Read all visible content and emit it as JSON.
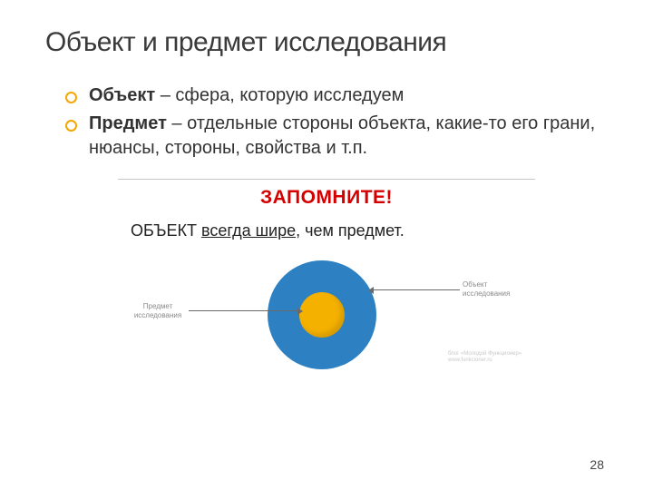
{
  "title": "Объект и предмет исследования",
  "bullets": [
    {
      "bold": "Объект",
      "rest": " – сфера, которую исследуем"
    },
    {
      "bold": "Предмет",
      "rest": " – отдельные стороны объекта, какие-то его грани, нюансы, стороны, свойства и т.п."
    }
  ],
  "info": {
    "header": "ЗАПОМНИТЕ!",
    "statement_pre": "ОБЪЕКТ ",
    "statement_underline": "всегда шире",
    "statement_post": ", чем предмет."
  },
  "diagram": {
    "outer_color": "#2d81c2",
    "inner_color": "#f5b100",
    "label_left_line1": "Предмет",
    "label_left_line2": "исследования",
    "label_right_line1": "Объект",
    "label_right_line2": "исследования"
  },
  "footnote_line1": "блог «Молодой Функционер»",
  "footnote_line2": "www.funkcioner.ru",
  "page": "28"
}
